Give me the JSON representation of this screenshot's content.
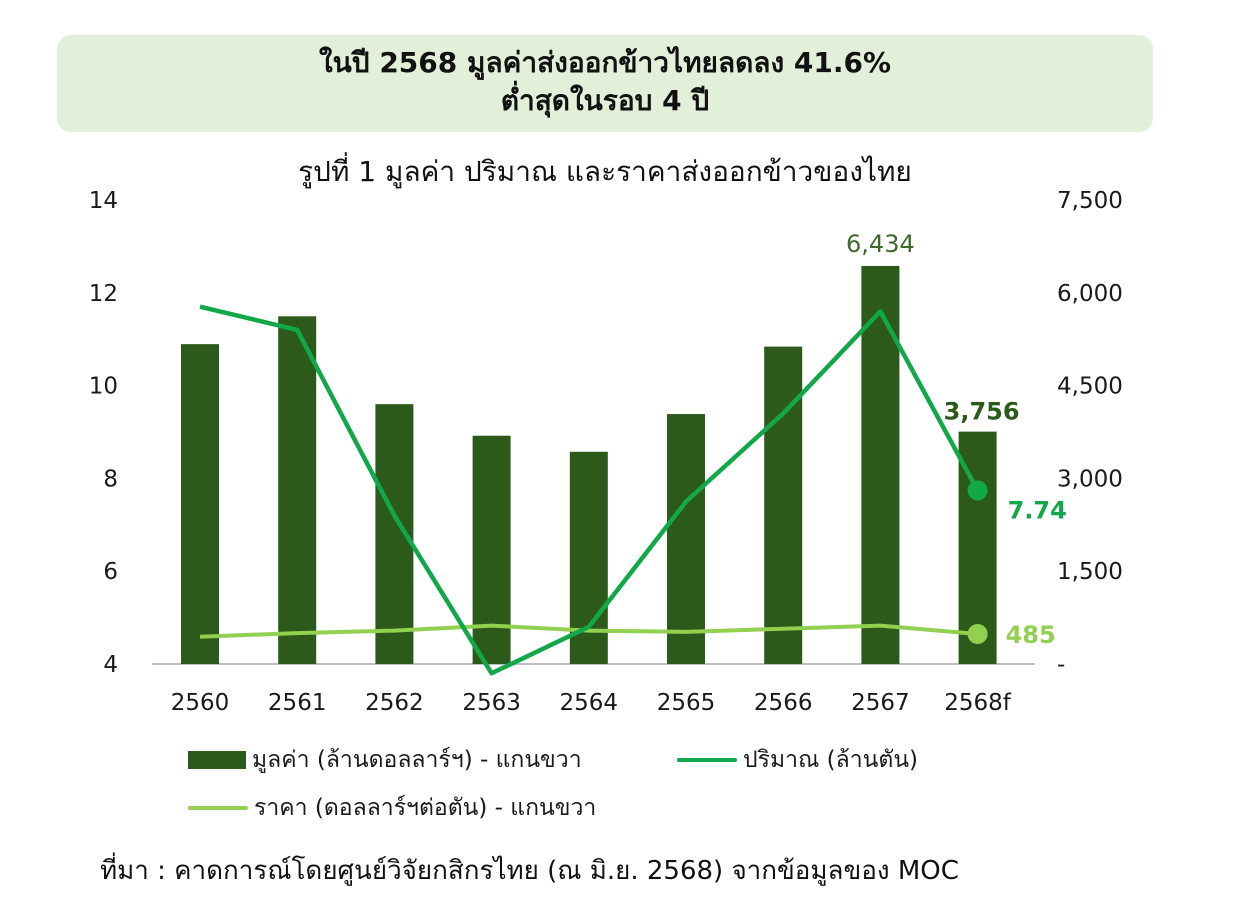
{
  "headline": {
    "line1": "ในปี 2568 มูลค่าส่งออกข้าวไทยลดลง 41.6%",
    "line2": "ต่ำสุดในรอบ 4 ปี"
  },
  "source": "ที่มา : คาดการณ์โดยศูนย์วิจัยกสิกรไทย (ณ มิ.ย. 2568) จากข้อมูลของ MOC",
  "colors": {
    "bar": "#2b5a1a",
    "quantity": "#12a84a",
    "price": "#92d050",
    "headline_bg": "#e2efd9"
  },
  "chart_data": {
    "type": "bar",
    "title": "รูปที่ 1 มูลค่า ปริมาณ และราคาส่งออกข้าวของไทย",
    "categories": [
      "2560",
      "2561",
      "2562",
      "2563",
      "2564",
      "2565",
      "2566",
      "2567",
      "2568f"
    ],
    "left_axis": {
      "ylim": [
        4,
        14
      ],
      "ticks": [
        "4",
        "6",
        "8",
        "10",
        "12",
        "14"
      ]
    },
    "right_axis": {
      "ylim": [
        0,
        7500
      ],
      "ticks": [
        "-",
        "1,500",
        "3,000",
        "4,500",
        "6,000",
        "7,500"
      ]
    },
    "series": [
      {
        "name": "มูลค่า (ล้านดอลลาร์ฯ) - แกนขวา",
        "type": "bar",
        "axis": "right",
        "values": [
          5170,
          5620,
          4200,
          3690,
          3430,
          4040,
          5130,
          6434,
          3756
        ]
      },
      {
        "name": "ปริมาณ (ล้านตัน)",
        "type": "line",
        "axis": "left",
        "values": [
          11.7,
          11.2,
          7.2,
          3.8,
          4.8,
          7.5,
          9.4,
          11.6,
          7.74
        ]
      },
      {
        "name": "ราคา (ดอลลาร์ฯต่อตัน) - แกนขวา",
        "type": "line",
        "axis": "right",
        "values": [
          440,
          500,
          540,
          620,
          540,
          520,
          570,
          620,
          485
        ]
      }
    ],
    "data_labels": {
      "bar_2567": "6,434",
      "bar_2568f": "3,756",
      "quantity_2568f": "7.74",
      "price_2568f": "485"
    },
    "legend_position": "bottom",
    "grid": false
  }
}
